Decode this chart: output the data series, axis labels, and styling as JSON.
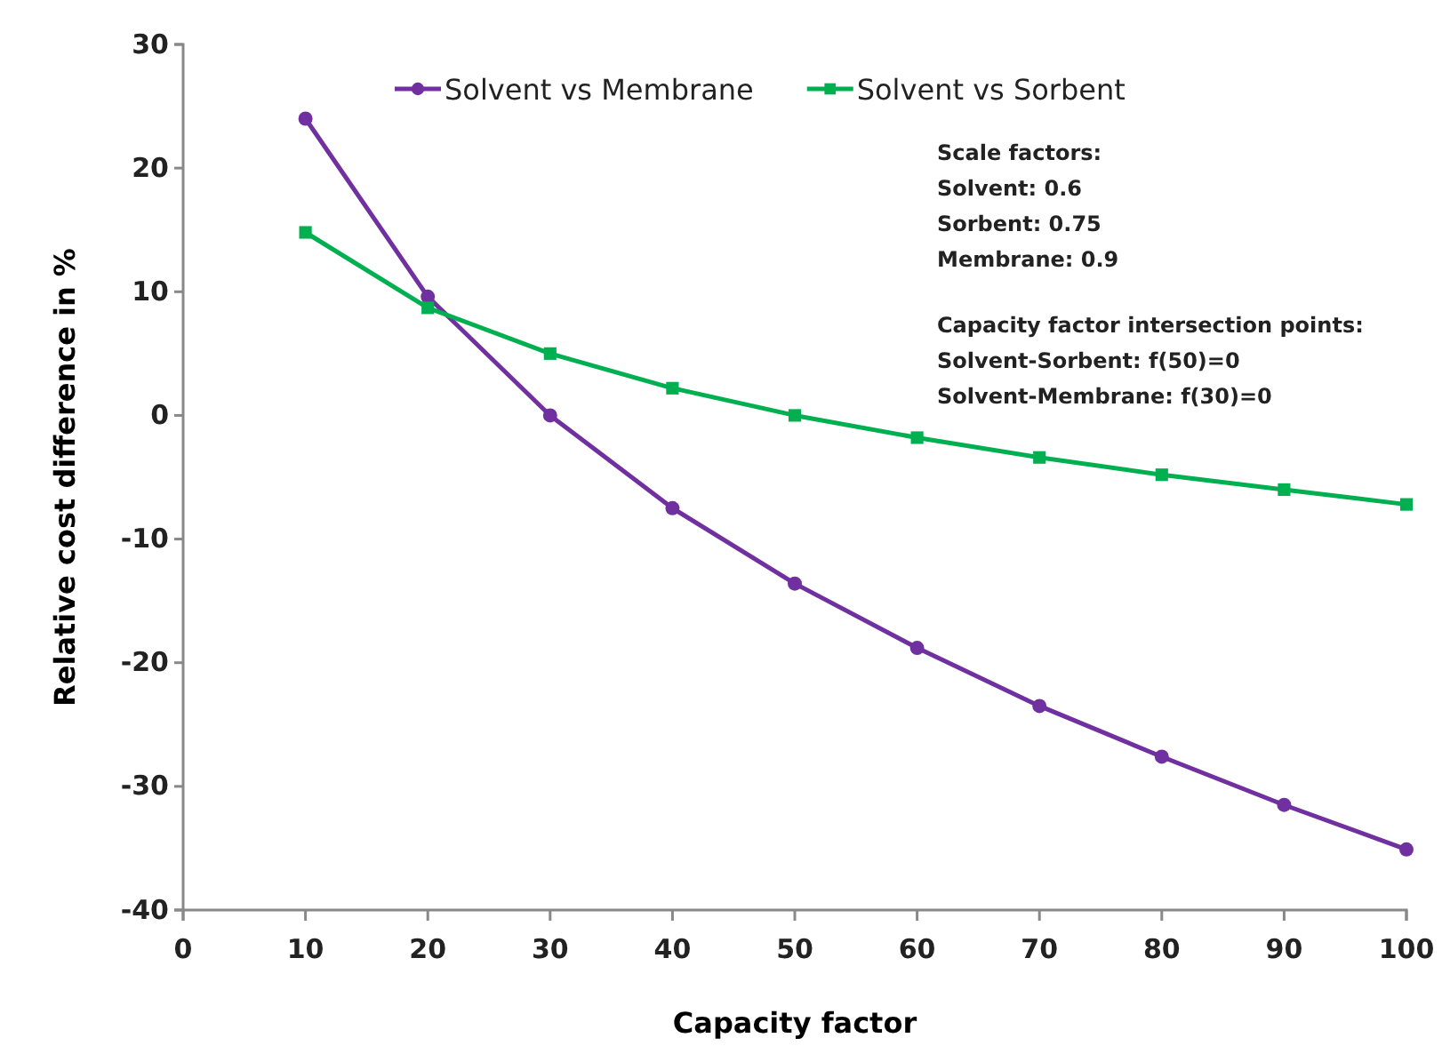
{
  "chart_data": {
    "type": "line",
    "xlabel": "Capacity factor",
    "ylabel": "Relative cost difference in %",
    "x": [
      10,
      20,
      30,
      40,
      50,
      60,
      70,
      80,
      90,
      100
    ],
    "series": [
      {
        "name": "Solvent vs Membrane",
        "color": "#7030a0",
        "marker": "circle",
        "values": [
          24,
          9.6,
          0,
          -7.5,
          -13.6,
          -18.8,
          -23.5,
          -27.6,
          -31.5,
          -35.1
        ]
      },
      {
        "name": "Solvent vs Sorbent",
        "color": "#00b050",
        "marker": "square",
        "values": [
          14.8,
          8.7,
          5,
          2.2,
          0,
          -1.8,
          -3.4,
          -4.8,
          -6,
          -7.2
        ]
      }
    ],
    "xlim": [
      0,
      100
    ],
    "xticks": [
      0,
      10,
      20,
      30,
      40,
      50,
      60,
      70,
      80,
      90,
      100
    ],
    "ylim": [
      -40,
      30
    ],
    "yticks": [
      -40,
      -30,
      -20,
      -10,
      0,
      10,
      20,
      30
    ],
    "grid": false,
    "legend": "top",
    "annotations": [
      "Scale factors:\nSolvent: 0.6\nSorbent: 0.75\nMembrane: 0.9",
      "Capacity factor intersection points:\nSolvent-Sorbent: f(50)=0\nSolvent-Membrane: f(30)=0"
    ]
  }
}
